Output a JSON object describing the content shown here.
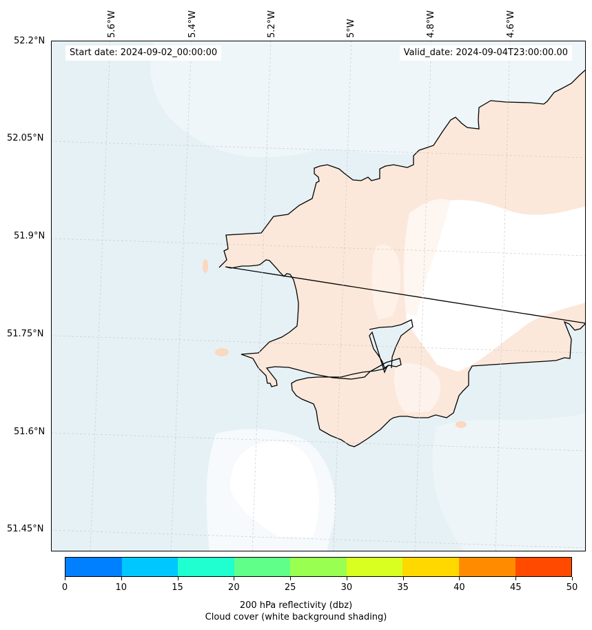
{
  "map": {
    "start_date": "Start date: 2024-09-02_00:00:00",
    "valid_date": "Valid_date: 2024-09-04T23:00:00.00",
    "lat_labels": [
      "52.2°N",
      "52.05°N",
      "51.9°N",
      "51.75°N",
      "51.6°N",
      "51.45°N"
    ],
    "lon_labels": [
      "5.6°W",
      "5.4°W",
      "5.2°W",
      "5°W",
      "4.8°W",
      "4.6°W"
    ],
    "colors": {
      "sea": "#e6f1f6",
      "land": "#fbe8da",
      "cloud": "#ffffff",
      "coastline": "#000000"
    }
  },
  "colorbar": {
    "ticks": [
      "0",
      "10",
      "15",
      "20",
      "25",
      "30",
      "35",
      "40",
      "45",
      "50"
    ],
    "colors": [
      "#0080ff",
      "#00c8ff",
      "#20ffd0",
      "#60ff8a",
      "#99ff50",
      "#d8ff20",
      "#ffd800",
      "#ff8c00",
      "#ff4a00"
    ],
    "label_line1": "200 hPa reflectivity (dbz)",
    "label_line2": "Cloud cover (white background shading)"
  }
}
